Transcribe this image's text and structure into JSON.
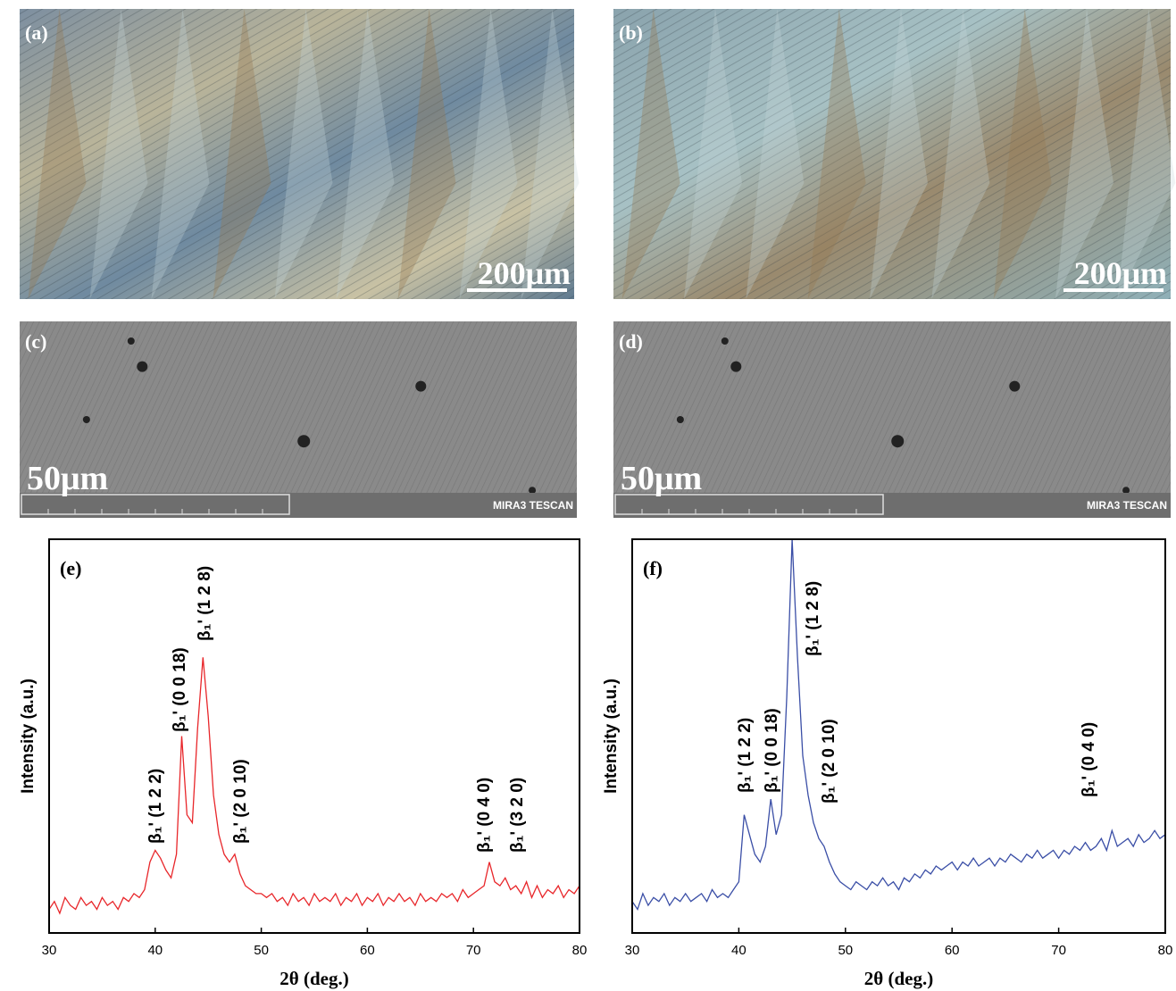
{
  "micrographs": [
    {
      "label": "(a)",
      "scale_bar": "200μm"
    },
    {
      "label": "(b)",
      "scale_bar": "200μm"
    },
    {
      "label": "(c)",
      "scale_bar": "50μm",
      "instrument": "MIRA3 TESCAN"
    },
    {
      "label": "(d)",
      "scale_bar": "50μm",
      "instrument": "MIRA3 TESCAN"
    }
  ],
  "chart_data": [
    {
      "type": "line",
      "panel_label": "(e)",
      "x_label": "2θ (deg.)",
      "y_label": "Intensity (a.u.)",
      "color": "#e8262a",
      "xlim": [
        30,
        80
      ],
      "xticks": [
        30,
        40,
        50,
        60,
        70,
        80
      ],
      "ylim": [
        0,
        100
      ],
      "x": [
        30,
        30.5,
        31,
        31.5,
        32,
        32.5,
        33,
        33.5,
        34,
        34.5,
        35,
        35.5,
        36,
        36.5,
        37,
        37.5,
        38,
        38.5,
        39,
        39.5,
        40,
        40.5,
        41,
        41.5,
        42,
        42.5,
        43,
        43.5,
        44,
        44.5,
        45,
        45.5,
        46,
        46.5,
        47,
        47.5,
        48,
        48.5,
        49,
        49.5,
        50,
        50.5,
        51,
        51.5,
        52,
        52.5,
        53,
        53.5,
        54,
        54.5,
        55,
        55.5,
        56,
        56.5,
        57,
        57.5,
        58,
        58.5,
        59,
        59.5,
        60,
        60.5,
        61,
        61.5,
        62,
        62.5,
        63,
        63.5,
        64,
        64.5,
        65,
        65.5,
        66,
        66.5,
        67,
        67.5,
        68,
        68.5,
        69,
        69.5,
        70,
        70.5,
        71,
        71.5,
        72,
        72.5,
        73,
        73.5,
        74,
        74.5,
        75,
        75.5,
        76,
        76.5,
        77,
        77.5,
        78,
        78.5,
        79,
        79.5,
        80
      ],
      "values": [
        6,
        8,
        5,
        9,
        7,
        6,
        9,
        7,
        8,
        6,
        9,
        7,
        8,
        6,
        9,
        8,
        10,
        9,
        11,
        18,
        21,
        19,
        16,
        14,
        20,
        50,
        30,
        28,
        52,
        70,
        55,
        35,
        25,
        20,
        18,
        20,
        15,
        12,
        11,
        10,
        10,
        9,
        10,
        8,
        9,
        7,
        10,
        8,
        9,
        7,
        10,
        8,
        9,
        8,
        10,
        7,
        9,
        8,
        10,
        7,
        9,
        8,
        10,
        7,
        9,
        8,
        10,
        8,
        9,
        7,
        10,
        8,
        9,
        8,
        10,
        9,
        10,
        8,
        11,
        9,
        10,
        11,
        12,
        18,
        13,
        12,
        14,
        11,
        12,
        10,
        13,
        9,
        12,
        9,
        11,
        10,
        12,
        9,
        11,
        10,
        12
      ],
      "annotations": [
        "β₁' (1 2 2)",
        "β₁' (0 0 18)",
        "β₁' (1 2 8)",
        "β₁' (2 0 10)",
        "β₁' (0 4 0)",
        "β₁' (3 2 0)"
      ]
    },
    {
      "type": "line",
      "panel_label": "(f)",
      "x_label": "2θ (deg.)",
      "y_label": "Intensity (a.u.)",
      "color": "#3a4ea6",
      "xlim": [
        30,
        80
      ],
      "xticks": [
        30,
        40,
        50,
        60,
        70,
        80
      ],
      "ylim": [
        0,
        100
      ],
      "x": [
        30,
        30.5,
        31,
        31.5,
        32,
        32.5,
        33,
        33.5,
        34,
        34.5,
        35,
        35.5,
        36,
        36.5,
        37,
        37.5,
        38,
        38.5,
        39,
        39.5,
        40,
        40.5,
        41,
        41.5,
        42,
        42.5,
        43,
        43.5,
        44,
        44.5,
        45,
        45.5,
        46,
        46.5,
        47,
        47.5,
        48,
        48.5,
        49,
        49.5,
        50,
        50.5,
        51,
        51.5,
        52,
        52.5,
        53,
        53.5,
        54,
        54.5,
        55,
        55.5,
        56,
        56.5,
        57,
        57.5,
        58,
        58.5,
        59,
        59.5,
        60,
        60.5,
        61,
        61.5,
        62,
        62.5,
        63,
        63.5,
        64,
        64.5,
        65,
        65.5,
        66,
        66.5,
        67,
        67.5,
        68,
        68.5,
        69,
        69.5,
        70,
        70.5,
        71,
        71.5,
        72,
        72.5,
        73,
        73.5,
        74,
        74.5,
        75,
        75.5,
        76,
        76.5,
        77,
        77.5,
        78,
        78.5,
        79,
        79.5,
        80
      ],
      "values": [
        8,
        6,
        10,
        7,
        9,
        8,
        10,
        7,
        9,
        8,
        10,
        8,
        9,
        10,
        8,
        11,
        9,
        10,
        9,
        11,
        13,
        30,
        25,
        20,
        18,
        22,
        34,
        25,
        30,
        60,
        100,
        70,
        45,
        35,
        28,
        24,
        22,
        18,
        15,
        13,
        12,
        11,
        13,
        12,
        11,
        13,
        12,
        14,
        12,
        13,
        11,
        14,
        13,
        15,
        14,
        16,
        15,
        17,
        16,
        17,
        18,
        16,
        18,
        17,
        19,
        17,
        18,
        19,
        17,
        19,
        18,
        20,
        19,
        18,
        20,
        19,
        21,
        19,
        20,
        21,
        19,
        21,
        20,
        22,
        21,
        23,
        21,
        22,
        24,
        21,
        26,
        22,
        23,
        24,
        22,
        25,
        23,
        24,
        26,
        24,
        25
      ],
      "annotations": [
        "β₁' (1 2 2)",
        "β₁' (0 0 18)",
        "β₁' (1 2 8)",
        "β₁' (2 0 10)",
        "β₁' (0 4 0)"
      ]
    }
  ]
}
